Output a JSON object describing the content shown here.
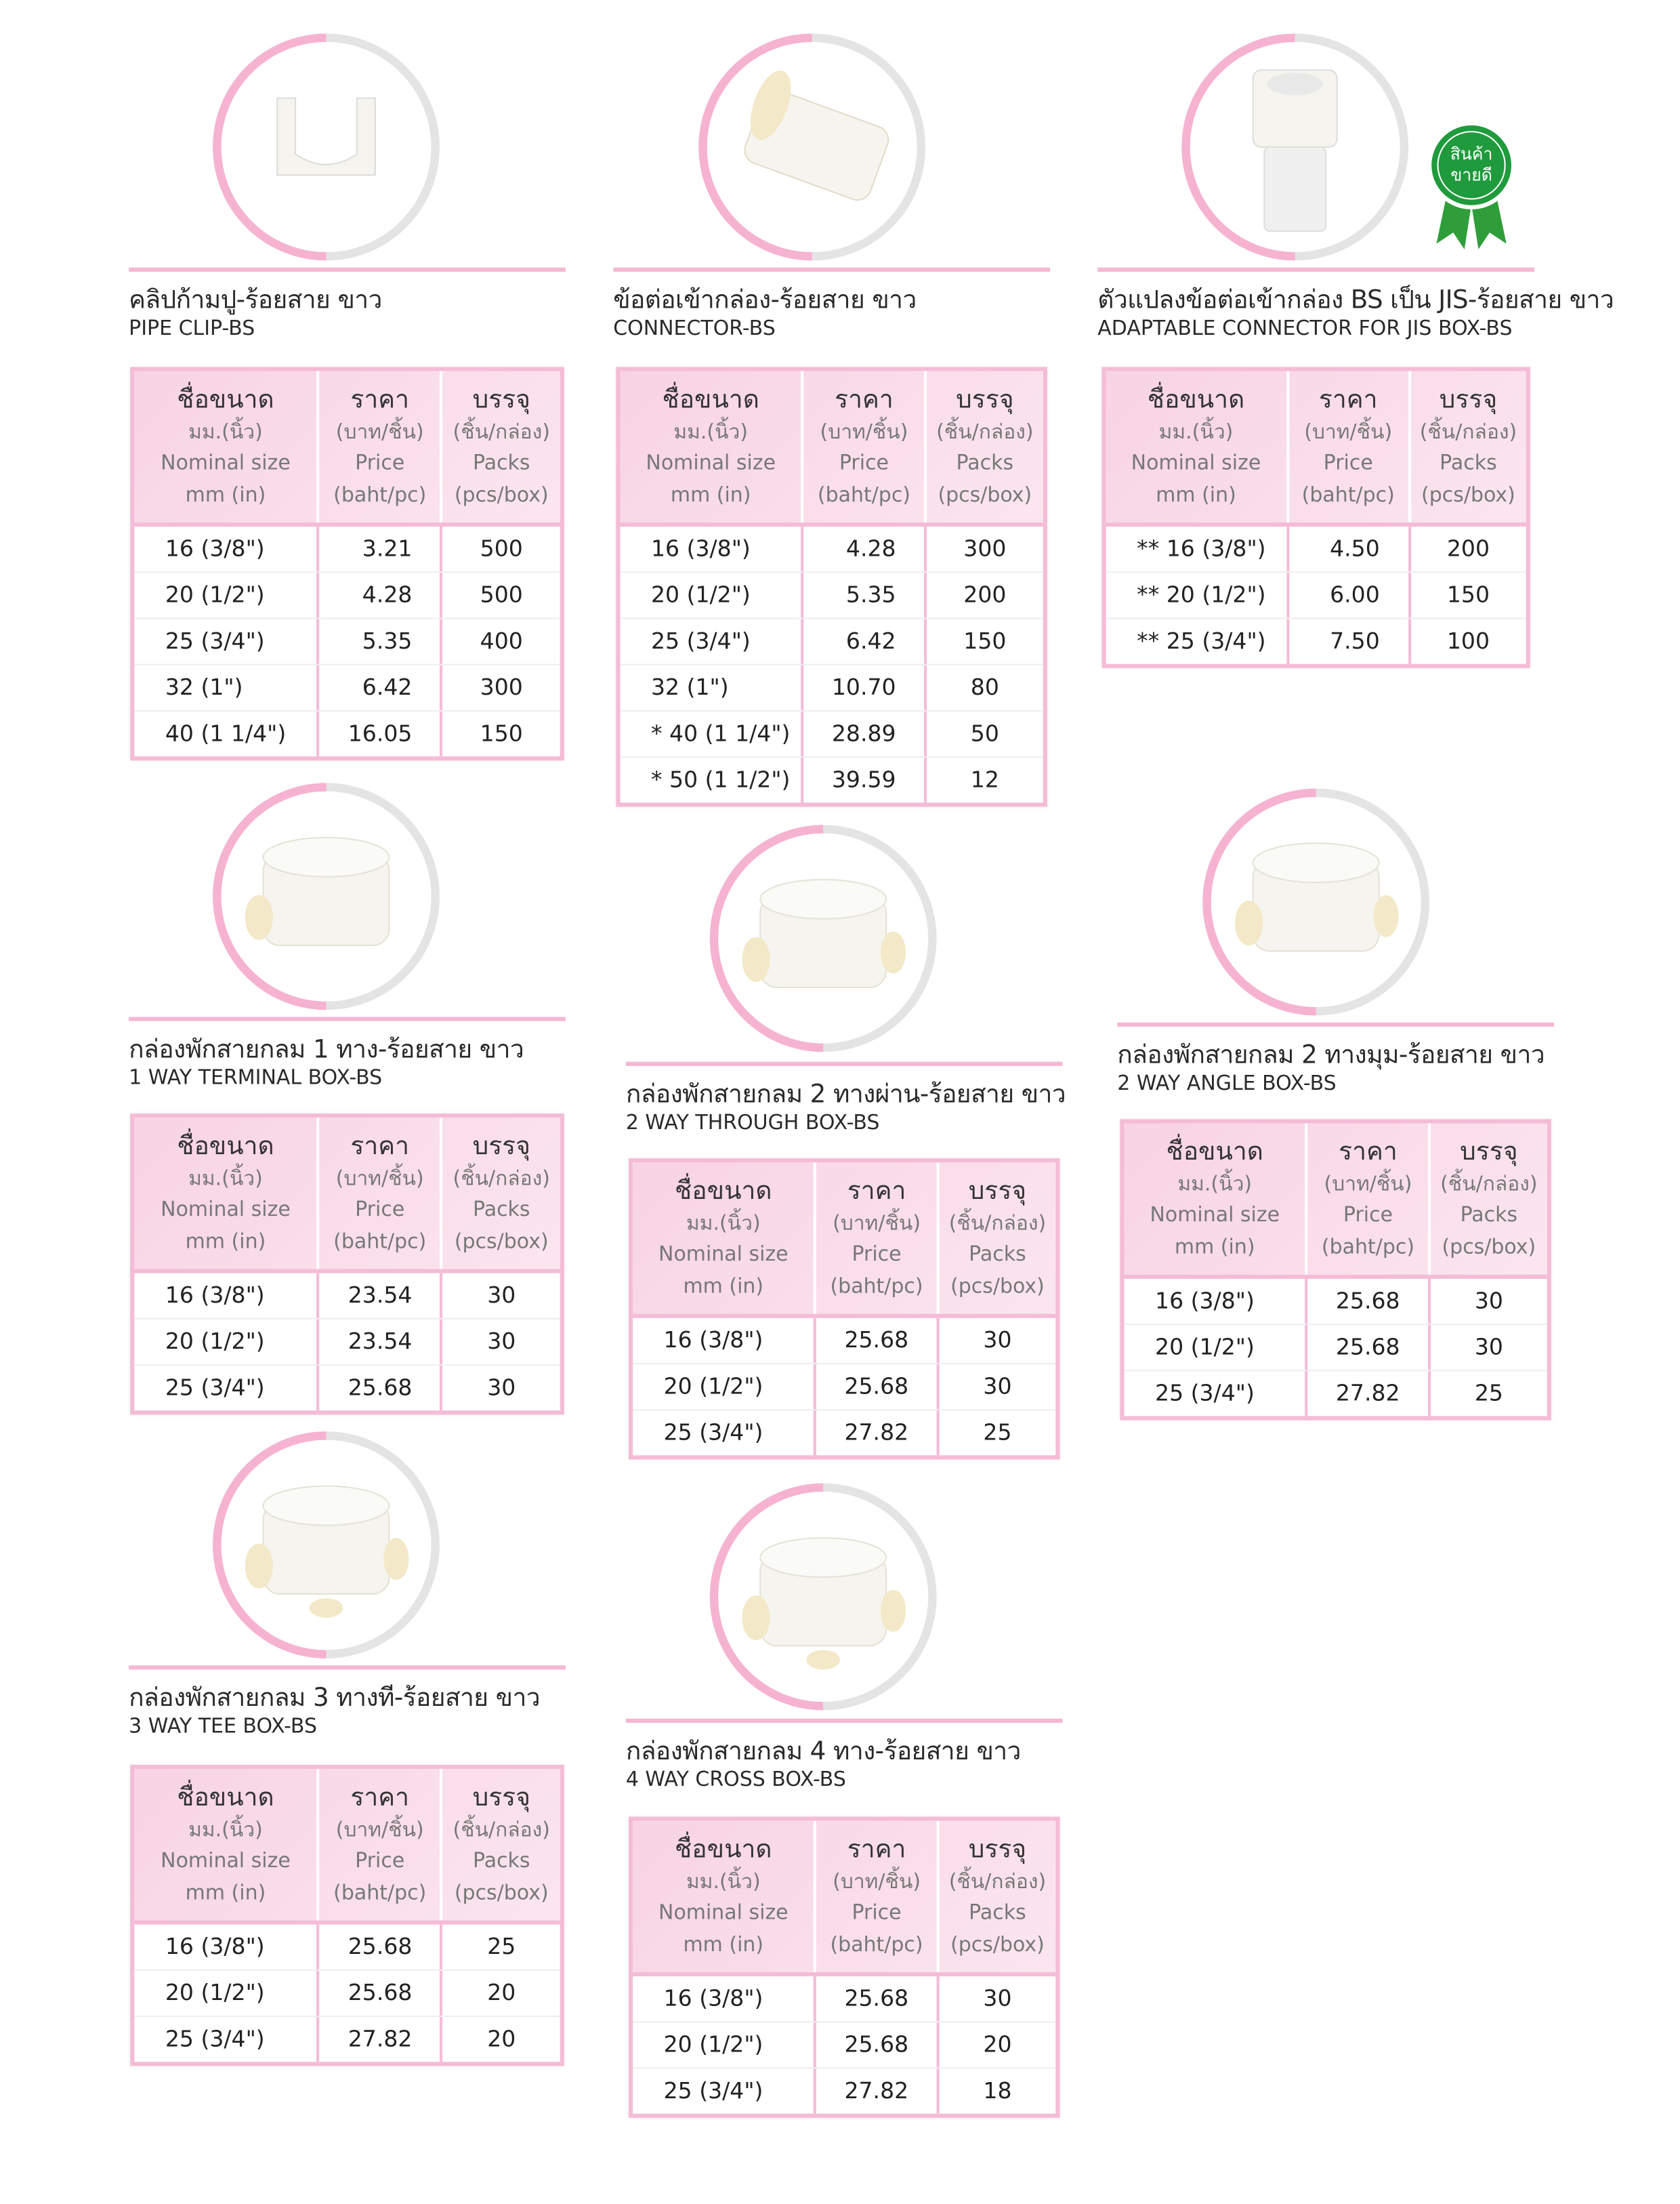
{
  "table_header": [
    [
      "ชื่อขนาด",
      "มม.(นิ้ว)",
      "Nominal size",
      "mm (in)"
    ],
    [
      "ราคา",
      "(บาท/ชิ้น)",
      "Price",
      "(baht/pc)"
    ],
    [
      "บรรจุ",
      "(ชิ้น/กล่อง)",
      "Packs",
      "(pcs/box)"
    ]
  ],
  "badge": [
    "สินค้า",
    "ขายดี"
  ],
  "products": [
    {
      "title_th": "คลิปก้ามปู-ร้อยสาย ขาว",
      "title_en": "PIPE CLIP-BS",
      "rows": [
        [
          "16 (3/8\")",
          "3.21",
          500
        ],
        [
          "20 (1/2\")",
          "4.28",
          500
        ],
        [
          "25 (3/4\")",
          "5.35",
          400
        ],
        [
          "32 (1\")",
          "6.42",
          300
        ],
        [
          "40 (1 1/4\")",
          "16.05",
          150
        ]
      ]
    },
    {
      "title_th": "ข้อต่อเข้ากล่อง-ร้อยสาย ขาว",
      "title_en": "CONNECTOR-BS",
      "rows": [
        [
          "16 (3/8\")",
          "4.28",
          300
        ],
        [
          "20 (1/2\")",
          "5.35",
          200
        ],
        [
          "25 (3/4\")",
          "6.42",
          150
        ],
        [
          "32 (1\")",
          "10.70",
          80
        ],
        [
          "* 40 (1 1/4\")",
          "28.89",
          50
        ],
        [
          "* 50 (1 1/2\")",
          "39.59",
          12
        ]
      ]
    },
    {
      "title_th": "ตัวแปลงข้อต่อเข้ากล่อง BS เป็น JIS-ร้อยสาย ขาว",
      "title_en": "ADAPTABLE CONNECTOR FOR JIS BOX-BS",
      "rows": [
        [
          "** 16 (3/8\")",
          "4.50",
          200
        ],
        [
          "** 20 (1/2\")",
          "6.00",
          150
        ],
        [
          "** 25 (3/4\")",
          "7.50",
          100
        ]
      ]
    },
    {
      "title_th": "กล่องพักสายกลม 1 ทาง-ร้อยสาย ขาว",
      "title_en": "1 WAY TERMINAL BOX-BS",
      "rows": [
        [
          "16 (3/8\")",
          "23.54",
          30
        ],
        [
          "20 (1/2\")",
          "23.54",
          30
        ],
        [
          "25 (3/4\")",
          "25.68",
          30
        ]
      ]
    },
    {
      "title_th": "กล่องพักสายกลม 2 ทางผ่าน-ร้อยสาย ขาว",
      "title_en": "2 WAY THROUGH BOX-BS",
      "rows": [
        [
          "16 (3/8\")",
          "25.68",
          30
        ],
        [
          "20 (1/2\")",
          "25.68",
          30
        ],
        [
          "25 (3/4\")",
          "27.82",
          25
        ]
      ]
    },
    {
      "title_th": "กล่องพักสายกลม 2 ทางมุม-ร้อยสาย ขาว",
      "title_en": "2 WAY ANGLE BOX-BS",
      "rows": [
        [
          "16 (3/8\")",
          "25.68",
          30
        ],
        [
          "20 (1/2\")",
          "25.68",
          30
        ],
        [
          "25 (3/4\")",
          "27.82",
          25
        ]
      ]
    },
    {
      "title_th": "กล่องพักสายกลม 3 ทางที-ร้อยสาย ขาว",
      "title_en": "3 WAY TEE  BOX-BS",
      "rows": [
        [
          "16 (3/8\")",
          "25.68",
          25
        ],
        [
          "20 (1/2\")",
          "25.68",
          20
        ],
        [
          "25 (3/4\")",
          "27.82",
          20
        ]
      ]
    },
    {
      "title_th": "กล่องพักสายกลม 4 ทาง-ร้อยสาย ขาว",
      "title_en": "4 WAY CROSS BOX-BS",
      "rows": [
        [
          "16 (3/8\")",
          "25.68",
          30
        ],
        [
          "20 (1/2\")",
          "25.68",
          20
        ],
        [
          "25 (3/4\")",
          "27.82",
          18
        ]
      ]
    }
  ]
}
